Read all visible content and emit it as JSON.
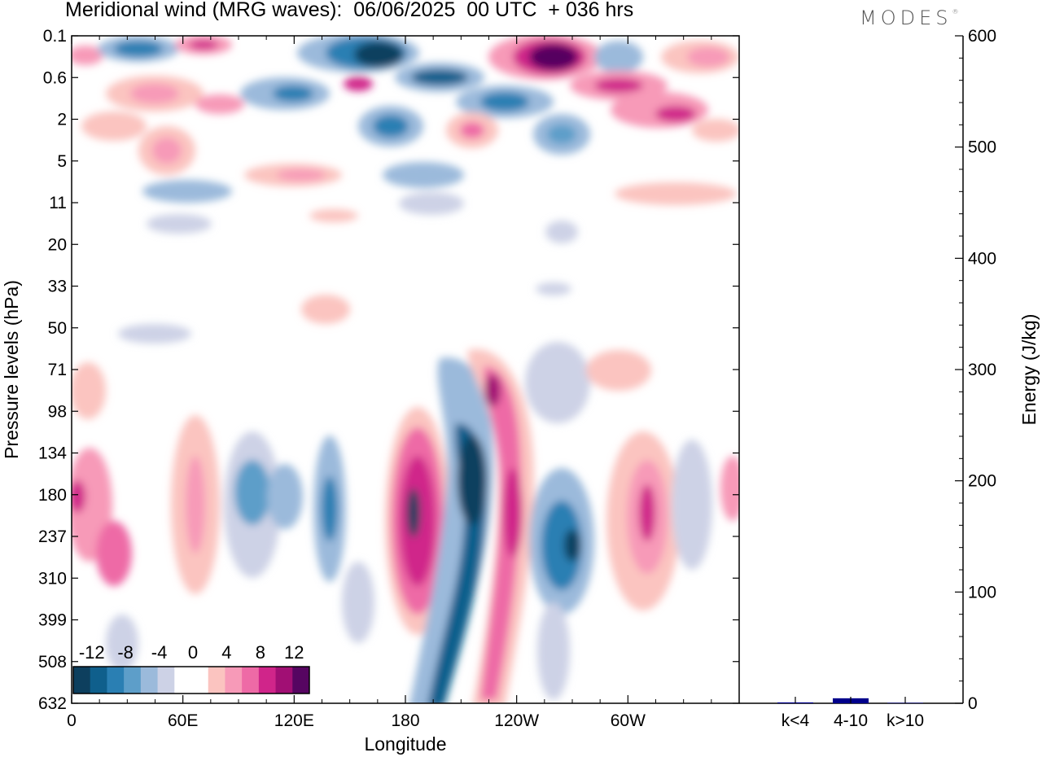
{
  "title": "Meridional wind (MRG waves):  06/06/2025  00 UTC  + 036 hrs",
  "logo": "MODES",
  "logo_mark": "®",
  "chart_data": [
    {
      "type": "heatmap",
      "xlabel": "Longitude",
      "ylabel": "Pressure levels (hPa)",
      "x_ticks": [
        "0",
        "60E",
        "120E",
        "180",
        "120W",
        "60W"
      ],
      "y_ticks": [
        "0.1",
        "0.6",
        "2",
        "5",
        "11",
        "20",
        "33",
        "50",
        "71",
        "98",
        "134",
        "180",
        "237",
        "310",
        "399",
        "508",
        "632"
      ],
      "legend": {
        "labels": [
          "-12",
          "-8",
          "-4",
          "0",
          "4",
          "8",
          "12"
        ],
        "colors": [
          "#0d3f5e",
          "#0f5f8c",
          "#2a7fb3",
          "#5d9ec9",
          "#9bbadb",
          "#cdd2e6",
          "#ffffff",
          "#ffffff",
          "#fbc4c0",
          "#f79ab8",
          "#ee6aa6",
          "#d0258a",
          "#a10f74",
          "#560561"
        ]
      }
    },
    {
      "type": "bar",
      "categories": [
        "k<4",
        "4-10",
        "k>10"
      ],
      "values": [
        0.8,
        4.5,
        0.4
      ],
      "ylabel": "Energy (J/kg)",
      "ylim": [
        0,
        600
      ],
      "y_ticks": [
        "0",
        "100",
        "200",
        "300",
        "400",
        "500",
        "600"
      ],
      "bar_color": "#00008b"
    }
  ]
}
